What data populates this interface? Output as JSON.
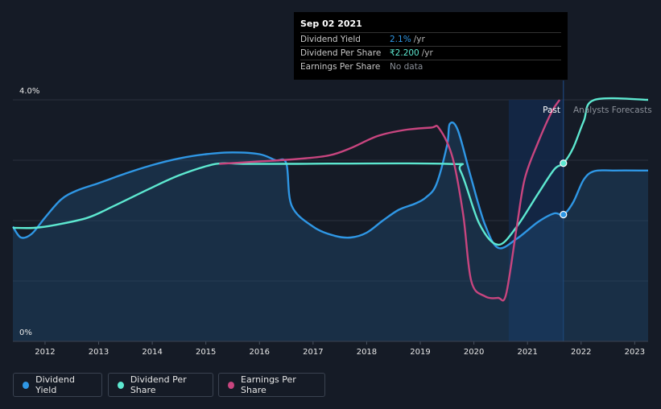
{
  "chart_data": {
    "type": "line",
    "y_axis": {
      "top_label": "4.0%",
      "bottom_label": "0%",
      "ylim": [
        0,
        4.0
      ]
    },
    "x_axis": {
      "ticks": [
        "2012",
        "2013",
        "2014",
        "2015",
        "2016",
        "2017",
        "2018",
        "2019",
        "2020",
        "2021",
        "2022",
        "2023"
      ],
      "xlim": [
        2011.4,
        2023.25
      ]
    },
    "regions": {
      "past_label": "Past",
      "forecast_label": "Analysts Forecasts",
      "past_band": [
        2020.65,
        2021.67
      ]
    },
    "grid": true,
    "series": [
      {
        "name": "Dividend Yield",
        "color": "#2f97e5",
        "fill": true,
        "points": [
          [
            2011.4,
            1.9
          ],
          [
            2011.55,
            1.72
          ],
          [
            2011.75,
            1.78
          ],
          [
            2012.0,
            2.05
          ],
          [
            2012.3,
            2.35
          ],
          [
            2012.6,
            2.5
          ],
          [
            2013.0,
            2.62
          ],
          [
            2013.5,
            2.78
          ],
          [
            2014.0,
            2.92
          ],
          [
            2014.5,
            3.03
          ],
          [
            2015.0,
            3.1
          ],
          [
            2015.5,
            3.13
          ],
          [
            2016.0,
            3.1
          ],
          [
            2016.3,
            3.0
          ],
          [
            2016.5,
            2.95
          ],
          [
            2016.6,
            2.25
          ],
          [
            2017.0,
            1.9
          ],
          [
            2017.4,
            1.75
          ],
          [
            2017.7,
            1.72
          ],
          [
            2018.0,
            1.8
          ],
          [
            2018.3,
            2.0
          ],
          [
            2018.6,
            2.18
          ],
          [
            2018.9,
            2.28
          ],
          [
            2019.1,
            2.38
          ],
          [
            2019.3,
            2.6
          ],
          [
            2019.5,
            3.25
          ],
          [
            2019.55,
            3.6
          ],
          [
            2019.7,
            3.5
          ],
          [
            2019.95,
            2.7
          ],
          [
            2020.2,
            1.95
          ],
          [
            2020.45,
            1.55
          ],
          [
            2020.8,
            1.7
          ],
          [
            2021.2,
            1.98
          ],
          [
            2021.5,
            2.12
          ],
          [
            2021.67,
            2.1
          ],
          [
            2021.85,
            2.3
          ],
          [
            2022.05,
            2.68
          ],
          [
            2022.25,
            2.82
          ],
          [
            2022.6,
            2.83
          ],
          [
            2023.25,
            2.83
          ]
        ]
      },
      {
        "name": "Dividend Per Share",
        "color": "#5de8d0",
        "fill": false,
        "points": [
          [
            2011.4,
            1.88
          ],
          [
            2011.8,
            1.88
          ],
          [
            2012.2,
            1.93
          ],
          [
            2012.8,
            2.05
          ],
          [
            2013.3,
            2.25
          ],
          [
            2014.0,
            2.55
          ],
          [
            2014.5,
            2.75
          ],
          [
            2015.0,
            2.9
          ],
          [
            2015.3,
            2.95
          ],
          [
            2015.7,
            2.94
          ],
          [
            2016.5,
            2.94
          ],
          [
            2019.5,
            2.94
          ],
          [
            2019.75,
            2.82
          ],
          [
            2020.1,
            1.95
          ],
          [
            2020.45,
            1.6
          ],
          [
            2020.8,
            1.9
          ],
          [
            2021.2,
            2.45
          ],
          [
            2021.5,
            2.85
          ],
          [
            2021.67,
            2.95
          ],
          [
            2021.85,
            3.2
          ],
          [
            2022.05,
            3.65
          ],
          [
            2022.25,
            4.0
          ],
          [
            2023.25,
            4.0
          ]
        ]
      },
      {
        "name": "Earnings Per Share",
        "color": "#c8457f",
        "fill": false,
        "points": [
          [
            2015.25,
            2.94
          ],
          [
            2016.0,
            2.98
          ],
          [
            2016.7,
            3.02
          ],
          [
            2017.3,
            3.08
          ],
          [
            2017.7,
            3.2
          ],
          [
            2018.2,
            3.4
          ],
          [
            2018.7,
            3.5
          ],
          [
            2019.2,
            3.54
          ],
          [
            2019.35,
            3.53
          ],
          [
            2019.6,
            3.05
          ],
          [
            2019.8,
            2.1
          ],
          [
            2019.95,
            1.0
          ],
          [
            2020.2,
            0.75
          ],
          [
            2020.45,
            0.72
          ],
          [
            2020.6,
            0.78
          ],
          [
            2020.8,
            1.9
          ],
          [
            2020.95,
            2.7
          ],
          [
            2021.2,
            3.3
          ],
          [
            2021.45,
            3.8
          ],
          [
            2021.6,
            4.0
          ]
        ]
      }
    ],
    "markers": [
      {
        "series": "Dividend Per Share",
        "x": 2021.67,
        "y": 2.95
      },
      {
        "series": "Dividend Yield",
        "x": 2021.67,
        "y": 2.1
      }
    ],
    "tooltip": {
      "date": "Sep 02 2021",
      "rows": [
        {
          "label": "Dividend Yield",
          "value": "2.1%",
          "unit": "/yr",
          "color": "#2f97e5"
        },
        {
          "label": "Dividend Per Share",
          "value": "₹2.200",
          "unit": "/yr",
          "color": "#5de8d0"
        },
        {
          "label": "Earnings Per Share",
          "value": "No data",
          "unit": "",
          "color": "#8a8f98"
        }
      ]
    },
    "legend": [
      "Dividend Yield",
      "Dividend Per Share",
      "Earnings Per Share"
    ]
  }
}
